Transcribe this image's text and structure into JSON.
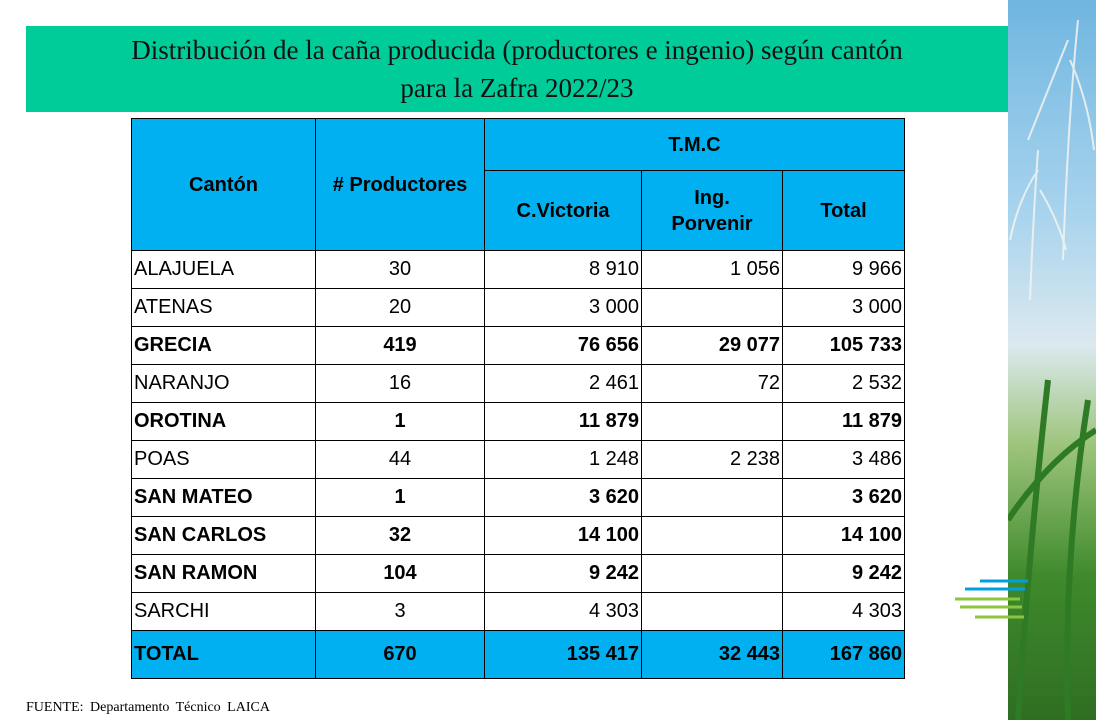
{
  "title": [
    "Distribución de la caña producida (productores e ingenio) según cantón",
    "para la Zafra 2022/23"
  ],
  "table": {
    "header": {
      "canton": "Cantón",
      "productores": "# Productores",
      "group": "T.M.C",
      "columns": [
        "C.Victoria",
        "Ing. Porvenir",
        "Total"
      ]
    },
    "rows": [
      {
        "cells": [
          "ALAJUELA",
          "30",
          "8 910",
          "1 056",
          "9 966"
        ],
        "bold": false
      },
      {
        "cells": [
          "ATENAS",
          "20",
          "3 000",
          null,
          "3 000"
        ],
        "bold": false
      },
      {
        "cells": [
          "GRECIA",
          "419",
          "76 656",
          "29 077",
          "105 733"
        ],
        "bold": true
      },
      {
        "cells": [
          "NARANJO",
          "16",
          "2 461",
          "72",
          "2 532"
        ],
        "bold": false
      },
      {
        "cells": [
          "OROTINA",
          "1",
          "11 879",
          null,
          "11 879"
        ],
        "bold": true
      },
      {
        "cells": [
          "POAS",
          "44",
          "1 248",
          "2 238",
          "3 486"
        ],
        "bold": false
      },
      {
        "cells": [
          "SAN MATEO",
          "1",
          "3 620",
          null,
          "3 620"
        ],
        "bold": true
      },
      {
        "cells": [
          "SAN CARLOS",
          "32",
          "14 100",
          null,
          "14 100"
        ],
        "bold": true
      },
      {
        "cells": [
          "SAN RAMON",
          "104",
          "9 242",
          null,
          "9 242"
        ],
        "bold": true
      },
      {
        "cells": [
          "SARCHI",
          "3",
          "4 303",
          null,
          "4 303"
        ],
        "bold": false
      }
    ],
    "total": [
      "TOTAL",
      "670",
      "135 417",
      "32 443",
      "167 860"
    ]
  },
  "source": "FUENTE: Departamento Técnico LAICA"
}
